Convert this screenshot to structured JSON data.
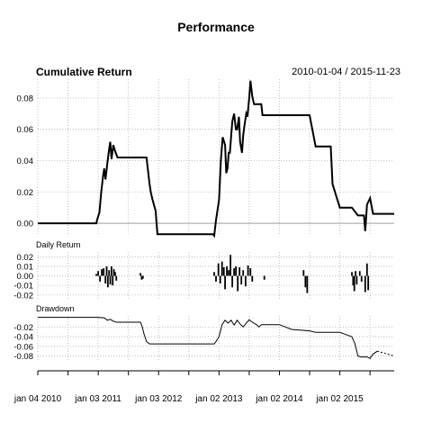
{
  "title": "Performance",
  "date_range": "2010-01-04 / 2015-11-23",
  "x_tick_labels": [
    "jan 04 2010",
    "jan 03 2011",
    "jan 03 2012",
    "jan 02 2013",
    "jan 02 2014",
    "jan 02 2015"
  ],
  "colors": {
    "line": "#000000",
    "grid": "#b3b3b3",
    "zero": "#a0a0a0"
  },
  "chart_data": [
    {
      "type": "line",
      "title": "Cumulative Return",
      "ylim": [
        -0.008,
        0.092
      ],
      "y_ticks": [
        0.0,
        0.02,
        0.04,
        0.06,
        0.08
      ],
      "y_tick_labels": [
        "0.00",
        "0.02",
        "0.04",
        "0.06",
        "0.08"
      ],
      "x_unit": "years since 2010-01-04",
      "x": [
        0,
        0.97,
        0.98,
        1.02,
        1.05,
        1.08,
        1.1,
        1.12,
        1.15,
        1.18,
        1.2,
        1.22,
        1.25,
        1.28,
        1.3,
        1.32,
        1.35,
        1.37,
        1.4,
        1.42,
        1.43,
        1.45,
        1.8,
        1.82,
        1.85,
        1.87,
        1.9,
        1.95,
        1.98,
        2.0,
        2.3,
        2.9,
        2.92,
        2.95,
        3.0,
        3.03,
        3.06,
        3.1,
        3.12,
        3.14,
        3.16,
        3.18,
        3.22,
        3.25,
        3.28,
        3.3,
        3.33,
        3.35,
        3.38,
        3.4,
        3.42,
        3.45,
        3.47,
        3.5,
        3.52,
        3.55,
        3.58,
        3.62,
        3.66,
        3.7,
        3.72,
        3.75,
        3.78,
        3.82,
        3.85,
        3.9,
        4.0,
        4.5,
        4.6,
        4.8,
        4.82,
        4.85,
        4.88,
        5.0,
        5.2,
        5.3,
        5.32,
        5.36,
        5.4,
        5.42,
        5.45,
        5.5,
        5.55,
        5.6,
        5.7,
        5.9
      ],
      "values": [
        0,
        0,
        0.002,
        0.007,
        0.02,
        0.03,
        0.035,
        0.028,
        0.038,
        0.047,
        0.052,
        0.041,
        0.05,
        0.046,
        0.044,
        0.042,
        0.042,
        0.042,
        0.042,
        0.042,
        0.042,
        0.042,
        0.042,
        0.035,
        0.025,
        0.02,
        0.015,
        0.008,
        -0.007,
        -0.007,
        -0.007,
        -0.007,
        -0.008,
        0.002,
        0.015,
        0.04,
        0.055,
        0.05,
        0.032,
        0.035,
        0.045,
        0.045,
        0.065,
        0.07,
        0.06,
        0.06,
        0.068,
        0.052,
        0.045,
        0.056,
        0.062,
        0.07,
        0.068,
        0.08,
        0.091,
        0.081,
        0.076,
        0.076,
        0.076,
        0.076,
        0.069,
        0.069,
        0.069,
        0.069,
        0.069,
        0.069,
        0.069,
        0.069,
        0.049,
        0.049,
        0.049,
        0.049,
        0.025,
        0.01,
        0.01,
        0.005,
        0.005,
        0.005,
        0.005,
        -0.005,
        0.012,
        0.016,
        0.006,
        0.006,
        0.006,
        0.006
      ]
    },
    {
      "type": "bar",
      "title": "Daily Return",
      "ylim": [
        -0.024,
        0.025
      ],
      "y_ticks": [
        0.02,
        0.01,
        0.0,
        -0.01,
        -0.02
      ],
      "y_tick_labels": [
        "0.02",
        "0.01",
        "0.00",
        "-0.01",
        "-0.02"
      ],
      "x": [
        0.97,
        1.0,
        1.03,
        1.06,
        1.09,
        1.12,
        1.14,
        1.16,
        1.18,
        1.2,
        1.22,
        1.24,
        1.26,
        1.28,
        1.3,
        1.7,
        1.72,
        1.74,
        2.92,
        2.95,
        2.99,
        3.02,
        3.05,
        3.08,
        3.1,
        3.13,
        3.16,
        3.19,
        3.22,
        3.25,
        3.28,
        3.31,
        3.34,
        3.37,
        3.4,
        3.44,
        3.48,
        3.52,
        3.55,
        3.75,
        4.4,
        4.43,
        4.46,
        5.2,
        5.22,
        5.24,
        5.26,
        5.28,
        5.33,
        5.36,
        5.42,
        5.45,
        5.47
      ],
      "values": [
        0.002,
        0.005,
        -0.006,
        0.007,
        0.008,
        -0.008,
        0.01,
        -0.012,
        0.006,
        -0.009,
        0.01,
        -0.01,
        0.007,
        0.004,
        -0.005,
        0.003,
        -0.004,
        -0.003,
        0.004,
        -0.006,
        0.013,
        -0.008,
        0.015,
        0.009,
        -0.014,
        0.01,
        0.006,
        0.022,
        -0.012,
        0.008,
        0.01,
        -0.016,
        0.009,
        -0.009,
        0.006,
        -0.011,
        0.011,
        0.008,
        -0.006,
        -0.004,
        0.006,
        -0.012,
        -0.018,
        0.004,
        -0.01,
        -0.016,
        0.005,
        -0.009,
        0.005,
        -0.006,
        -0.017,
        0.013,
        -0.015
      ]
    },
    {
      "type": "line",
      "title": "Drawdown",
      "ylim": [
        -0.092,
        0.003
      ],
      "y_ticks": [
        -0.02,
        -0.04,
        -0.06,
        -0.08
      ],
      "y_tick_labels": [
        "-0.02",
        "-0.04",
        "-0.06",
        "-0.08"
      ],
      "x": [
        0,
        0.97,
        1.1,
        1.15,
        1.2,
        1.25,
        1.3,
        1.4,
        1.7,
        1.73,
        1.76,
        1.8,
        1.85,
        2.2,
        2.92,
        2.95,
        3.0,
        3.05,
        3.1,
        3.15,
        3.2,
        3.25,
        3.3,
        3.35,
        3.4,
        3.45,
        3.5,
        3.55,
        3.62,
        3.66,
        3.7,
        4.0,
        4.1,
        4.2,
        4.5,
        4.6,
        5.0,
        5.2,
        5.25,
        5.3,
        5.35,
        5.4,
        5.45,
        5.5,
        5.55,
        5.62,
        5.9
      ],
      "values": [
        0,
        0,
        -0.001,
        -0.006,
        -0.004,
        -0.008,
        -0.01,
        -0.01,
        -0.01,
        -0.02,
        -0.035,
        -0.05,
        -0.055,
        -0.055,
        -0.055,
        -0.05,
        -0.04,
        -0.015,
        -0.006,
        -0.012,
        -0.006,
        -0.016,
        -0.006,
        -0.014,
        -0.02,
        -0.012,
        -0.005,
        -0.01,
        -0.015,
        -0.02,
        -0.015,
        -0.015,
        -0.02,
        -0.025,
        -0.028,
        -0.031,
        -0.031,
        -0.04,
        -0.055,
        -0.08,
        -0.082,
        -0.082,
        -0.082,
        -0.085,
        -0.076,
        -0.07,
        -0.08
      ]
    }
  ]
}
